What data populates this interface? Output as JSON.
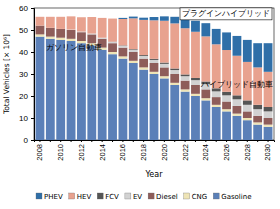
{
  "chart_data": {
    "type": "bar",
    "stacked": true,
    "x_label": "Year",
    "y_label": "Total Vehicles [× 10⁶]",
    "categories": [
      "2008",
      null,
      "2010",
      null,
      "2012",
      null,
      "2014",
      null,
      "2016",
      null,
      "2018",
      null,
      "2020",
      null,
      "2022",
      null,
      "2024",
      null,
      "2026",
      null,
      "2028",
      null,
      "2030"
    ],
    "series": [
      {
        "name": "Gasoline",
        "color": "#5b80b8",
        "values": [
          47,
          46,
          45.5,
          45,
          44,
          43,
          41,
          39,
          37,
          35,
          32,
          30,
          28,
          25,
          22,
          20,
          18,
          15,
          13,
          11,
          9,
          7,
          6
        ]
      },
      {
        "name": "CNG",
        "color": "#eee4b6",
        "values": [
          1,
          1,
          1,
          1,
          1,
          1,
          1,
          1,
          1,
          1,
          1,
          1,
          1,
          1,
          1,
          1,
          1,
          1,
          1,
          1,
          1,
          1,
          1
        ]
      },
      {
        "name": "Diesel",
        "color": "#8e5d5a",
        "values": [
          4,
          4,
          4,
          4,
          4,
          4,
          4,
          4,
          4,
          4,
          4,
          4,
          4,
          4,
          4,
          4,
          4,
          3.5,
          3.5,
          3.5,
          3,
          3,
          3
        ]
      },
      {
        "name": "EV",
        "color": "#d2d2d2",
        "values": [
          0,
          0,
          0,
          0.2,
          0.3,
          0.4,
          0.5,
          0.6,
          0.8,
          1,
          1.2,
          1.4,
          1.6,
          1.8,
          2,
          2.2,
          2.4,
          2.6,
          2.8,
          3,
          3,
          3,
          3
        ]
      },
      {
        "name": "FCV",
        "color": "#555555",
        "values": [
          0,
          0,
          0,
          0,
          0,
          0,
          0,
          0.1,
          0.2,
          0.3,
          0.4,
          0.5,
          0.6,
          0.7,
          0.8,
          1,
          1.2,
          1.4,
          1.6,
          1.8,
          2,
          2,
          2
        ]
      },
      {
        "name": "HEV",
        "color": "#e8a28f",
        "values": [
          4,
          5,
          5.5,
          6,
          6.5,
          7.5,
          9,
          10.5,
          12,
          14,
          16,
          17.5,
          19,
          20.5,
          21,
          21,
          20.5,
          20,
          19,
          18,
          17.5,
          17,
          16
        ]
      },
      {
        "name": "PHEV",
        "color": "#2f6fa8",
        "values": [
          0,
          0,
          0,
          0,
          0,
          0,
          0,
          0,
          0.5,
          0.8,
          1,
          1.5,
          2,
          3,
          4,
          5,
          6,
          7,
          8,
          9,
          10,
          11,
          13
        ]
      }
    ],
    "ylim": [
      0,
      60
    ],
    "yticks": [
      0,
      10,
      20,
      30,
      40,
      50,
      60
    ],
    "legend": "bottom",
    "annotations": [
      "ガソリン自動車",
      "ハイブリッド自動車",
      "プラグインハイブリッド"
    ]
  }
}
